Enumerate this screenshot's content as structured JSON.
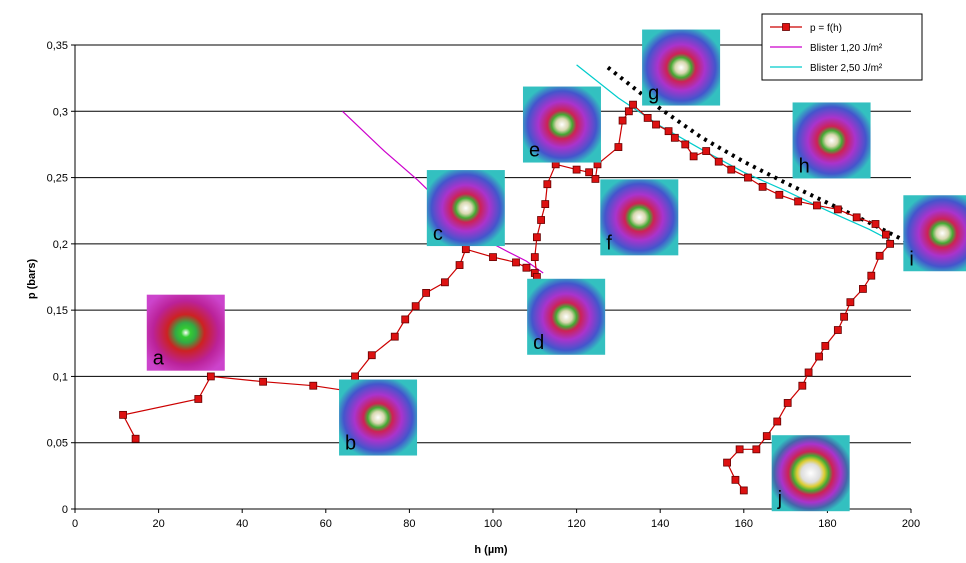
{
  "chart_data": {
    "type": "line",
    "xlabel": "h (µm)",
    "ylabel": "p (bars)",
    "xlim": [
      0,
      200
    ],
    "ylim": [
      0,
      0.35
    ],
    "x_ticks": [
      0,
      20,
      40,
      60,
      80,
      100,
      120,
      140,
      160,
      180,
      200
    ],
    "y_ticks": [
      0,
      0.05,
      0.1,
      0.15,
      0.2,
      0.25,
      0.3,
      0.35
    ],
    "x_tick_labels": [
      "0",
      "20",
      "40",
      "60",
      "80",
      "100",
      "120",
      "140",
      "160",
      "180",
      "200"
    ],
    "y_tick_labels": [
      "0",
      "0,05",
      "0,1",
      "0,15",
      "0,2",
      "0,25",
      "0,3",
      "0,35"
    ],
    "grid": "horizontal",
    "legend_position": "top-right",
    "series": [
      {
        "name": "p = f(h)",
        "color": "#cc0000",
        "marker": "square",
        "points": [
          [
            14.5,
            0.053
          ],
          [
            11.5,
            0.071
          ],
          [
            29.5,
            0.083
          ],
          [
            32.5,
            0.1
          ],
          [
            45,
            0.096
          ],
          [
            57,
            0.093
          ],
          [
            67.5,
            0.088
          ],
          [
            67,
            0.1
          ],
          [
            71,
            0.116
          ],
          [
            76.5,
            0.13
          ],
          [
            79,
            0.143
          ],
          [
            81.5,
            0.153
          ],
          [
            84,
            0.163
          ],
          [
            88.5,
            0.171
          ],
          [
            92,
            0.184
          ],
          [
            93.5,
            0.196
          ],
          [
            100,
            0.19
          ],
          [
            105.5,
            0.186
          ],
          [
            108,
            0.182
          ],
          [
            110,
            0.178
          ],
          [
            110.5,
            0.175
          ],
          [
            110,
            0.19
          ],
          [
            110.5,
            0.205
          ],
          [
            111.5,
            0.218
          ],
          [
            112.5,
            0.23
          ],
          [
            113,
            0.245
          ],
          [
            115,
            0.26
          ],
          [
            120,
            0.256
          ],
          [
            123,
            0.254
          ],
          [
            124.5,
            0.249
          ],
          [
            125,
            0.26
          ],
          [
            130,
            0.273
          ],
          [
            131,
            0.293
          ],
          [
            132.5,
            0.3
          ],
          [
            133.5,
            0.305
          ],
          [
            137,
            0.295
          ],
          [
            139,
            0.29
          ],
          [
            142,
            0.285
          ],
          [
            143.5,
            0.28
          ],
          [
            146,
            0.275
          ],
          [
            148,
            0.266
          ],
          [
            151,
            0.27
          ],
          [
            154,
            0.262
          ],
          [
            157,
            0.256
          ],
          [
            161,
            0.25
          ],
          [
            164.5,
            0.243
          ],
          [
            168.5,
            0.237
          ],
          [
            173,
            0.232
          ],
          [
            177.5,
            0.229
          ],
          [
            182.5,
            0.226
          ],
          [
            187,
            0.22
          ],
          [
            191.5,
            0.215
          ],
          [
            194,
            0.207
          ],
          [
            195,
            0.2
          ],
          [
            192.5,
            0.191
          ],
          [
            190.5,
            0.176
          ],
          [
            188.5,
            0.166
          ],
          [
            185.5,
            0.156
          ],
          [
            184,
            0.145
          ],
          [
            182.5,
            0.135
          ],
          [
            179.5,
            0.123
          ],
          [
            178,
            0.115
          ],
          [
            175.5,
            0.103
          ],
          [
            174,
            0.093
          ],
          [
            170.5,
            0.08
          ],
          [
            168,
            0.066
          ],
          [
            165.5,
            0.055
          ],
          [
            163,
            0.045
          ],
          [
            159,
            0.045
          ],
          [
            156,
            0.035
          ],
          [
            158,
            0.022
          ],
          [
            160,
            0.014
          ]
        ]
      },
      {
        "name": "Blister 1,20 J/m²",
        "color": "#cc00cc",
        "marker": "none",
        "points": [
          [
            64,
            0.3
          ],
          [
            74,
            0.27
          ],
          [
            82,
            0.248
          ],
          [
            88.5,
            0.228
          ],
          [
            92.5,
            0.212
          ],
          [
            97,
            0.205
          ],
          [
            103,
            0.195
          ],
          [
            108,
            0.187
          ],
          [
            112,
            0.178
          ]
        ]
      },
      {
        "name": "Blister 2,50 J/m²",
        "color": "#00cccc",
        "marker": "none",
        "points": [
          [
            120,
            0.335
          ],
          [
            130,
            0.31
          ],
          [
            140,
            0.289
          ],
          [
            150,
            0.271
          ],
          [
            160,
            0.254
          ],
          [
            170,
            0.24
          ],
          [
            180,
            0.225
          ],
          [
            190,
            0.211
          ],
          [
            196,
            0.201
          ]
        ]
      },
      {
        "name": "",
        "color": "#000000",
        "marker": "none",
        "dashed": true,
        "points": [
          [
            127.5,
            0.333
          ],
          [
            140,
            0.302
          ],
          [
            150,
            0.28
          ],
          [
            160,
            0.262
          ],
          [
            170,
            0.246
          ],
          [
            180,
            0.231
          ],
          [
            190,
            0.216
          ],
          [
            200,
            0.2
          ],
          [
            205,
            0.19
          ]
        ]
      }
    ],
    "thumbnails": [
      {
        "label": "a",
        "at": [
          26.5,
          0.133
        ]
      },
      {
        "label": "b",
        "at": [
          72.5,
          0.069
        ]
      },
      {
        "label": "c",
        "at": [
          93.5,
          0.227
        ]
      },
      {
        "label": "d",
        "at": [
          117.5,
          0.145
        ]
      },
      {
        "label": "e",
        "at": [
          116.5,
          0.29
        ]
      },
      {
        "label": "f",
        "at": [
          135,
          0.22
        ]
      },
      {
        "label": "g",
        "at": [
          145,
          0.333
        ]
      },
      {
        "label": "h",
        "at": [
          181,
          0.278
        ]
      },
      {
        "label": "i",
        "at": [
          207.5,
          0.208
        ]
      },
      {
        "label": "j",
        "at": [
          176,
          0.027
        ]
      }
    ]
  }
}
